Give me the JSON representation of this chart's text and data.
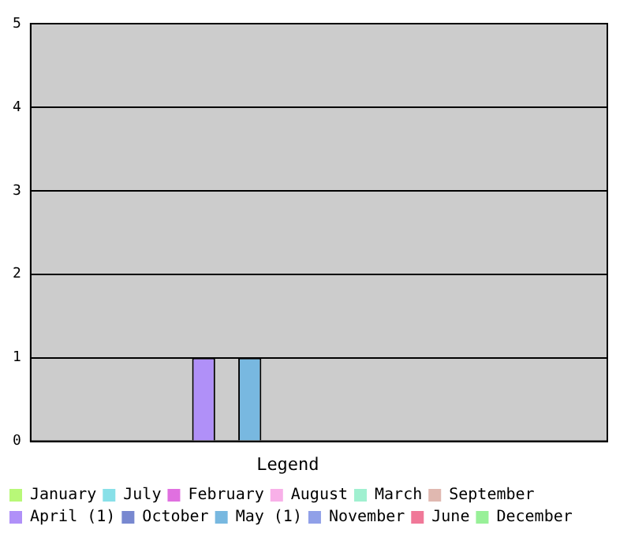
{
  "chart_data": {
    "type": "bar",
    "legend_title": "Legend",
    "categories": [
      null
    ],
    "series": [
      {
        "name": "January",
        "color": "#b8f878",
        "values": [
          0
        ]
      },
      {
        "name": "February",
        "color": "#e070e0",
        "values": [
          0
        ]
      },
      {
        "name": "March",
        "color": "#a0f0d0",
        "values": [
          0
        ]
      },
      {
        "name": "April (1)",
        "color": "#b090f8",
        "values": [
          1
        ]
      },
      {
        "name": "May (1)",
        "color": "#78b8e0",
        "values": [
          1
        ]
      },
      {
        "name": "June",
        "color": "#f07898",
        "values": [
          0
        ]
      },
      {
        "name": "July",
        "color": "#88e0e8",
        "values": [
          0
        ]
      },
      {
        "name": "August",
        "color": "#f8b0e8",
        "values": [
          0
        ]
      },
      {
        "name": "September",
        "color": "#e0b8b0",
        "values": [
          0
        ]
      },
      {
        "name": "October",
        "color": "#7888d0",
        "values": [
          0
        ]
      },
      {
        "name": "November",
        "color": "#90a0e8",
        "values": [
          0
        ]
      },
      {
        "name": "December",
        "color": "#98f098",
        "values": [
          0
        ]
      }
    ],
    "ylim": [
      0,
      5
    ],
    "yticks": [
      0,
      1,
      2,
      3,
      4,
      5
    ],
    "grid": "y",
    "legend": "bottom",
    "tick_labels": "y"
  }
}
